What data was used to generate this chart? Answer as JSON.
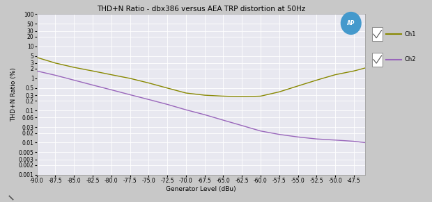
{
  "title": "THD+N Ratio - dbx386 versus AEA TRP distortion at 50Hz",
  "xlabel": "Generator Level (dBu)",
  "ylabel": "THD+N Ratio (%)",
  "xmin": -90.0,
  "xmax": -46.0,
  "ymin": 0.001,
  "ymax": 100,
  "yticks": [
    100,
    50,
    30,
    20,
    10,
    5,
    3,
    2,
    1,
    0.5,
    0.3,
    0.2,
    0.1,
    0.06,
    0.03,
    0.02,
    0.01,
    0.005,
    0.003,
    0.002,
    0.001
  ],
  "xticks": [
    -90.0,
    -87.5,
    -85.0,
    -82.5,
    -80.0,
    -77.5,
    -75.0,
    -72.5,
    -70.0,
    -67.5,
    -65.0,
    -62.5,
    -60.0,
    -57.5,
    -55.0,
    -52.5,
    -50.0,
    -47.5
  ],
  "ch1_color": "#888800",
  "ch2_color": "#9966bb",
  "outer_bg": "#c8c8c8",
  "plot_bg": "#e8e8f0",
  "legend_bg": "#e0e0e0",
  "grid_color": "#ffffff",
  "title_fontsize": 7.5,
  "axis_fontsize": 6.5,
  "tick_fontsize": 5.5,
  "legend_ch1": "Ch1",
  "legend_ch2": "Ch2",
  "ap_circle_color": "#4499cc",
  "ch1_x": [
    -90,
    -87.5,
    -85,
    -82.5,
    -80,
    -77.5,
    -75,
    -72.5,
    -70,
    -67.5,
    -65,
    -62.5,
    -60,
    -57.5,
    -55,
    -52.5,
    -50,
    -47.5,
    -46
  ],
  "ch1_y": [
    4.5,
    3.0,
    2.2,
    1.7,
    1.3,
    1.0,
    0.72,
    0.5,
    0.35,
    0.3,
    0.28,
    0.27,
    0.28,
    0.38,
    0.58,
    0.88,
    1.3,
    1.7,
    2.1
  ],
  "ch2_x": [
    -90,
    -87.5,
    -85,
    -82.5,
    -80,
    -77.5,
    -75,
    -72.5,
    -70,
    -67.5,
    -65,
    -62.5,
    -60,
    -57.5,
    -55,
    -52.5,
    -50,
    -47.5,
    -46
  ],
  "ch2_y": [
    1.7,
    1.25,
    0.88,
    0.62,
    0.44,
    0.31,
    0.22,
    0.155,
    0.105,
    0.074,
    0.05,
    0.034,
    0.023,
    0.018,
    0.015,
    0.013,
    0.012,
    0.011,
    0.01
  ]
}
